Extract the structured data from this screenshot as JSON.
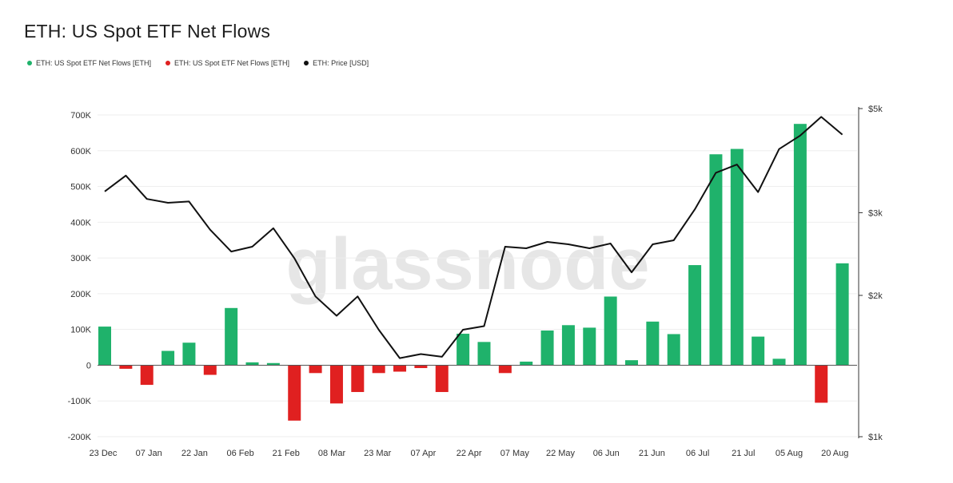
{
  "header": {
    "title": "ETH: US Spot ETF Net Flows"
  },
  "legend": {
    "items": [
      {
        "label": "ETH: US Spot ETF Net Flows [ETH]",
        "color": "#1fb26b"
      },
      {
        "label": "ETH: US Spot ETF Net Flows [ETH]",
        "color": "#e02020"
      },
      {
        "label": "ETH: Price [USD]",
        "color": "#111111"
      }
    ]
  },
  "watermark": "glassnode",
  "chart_data": {
    "type": "bar",
    "title": "ETH: US Spot ETF Net Flows",
    "x_tick_labels": [
      "23 Dec",
      "07 Jan",
      "22 Jan",
      "06 Feb",
      "21 Feb",
      "08 Mar",
      "23 Mar",
      "07 Apr",
      "22 Apr",
      "07 May",
      "22 May",
      "06 Jun",
      "21 Jun",
      "06 Jul",
      "21 Jul",
      "05 Aug",
      "20 Aug"
    ],
    "y_left_ticks": [
      "700K",
      "600K",
      "500K",
      "400K",
      "300K",
      "200K",
      "100K",
      "0",
      "-100K",
      "-200K"
    ],
    "y_left_range": [
      -200000,
      700000
    ],
    "y_right_ticks": [
      "$5k",
      "$3k",
      "$2k",
      "$1k"
    ],
    "y_right_scale": "log",
    "y_right_range": [
      1000,
      5000
    ],
    "colors": {
      "inflow": "#1fb26b",
      "outflow": "#e02020",
      "price": "#111111"
    },
    "grid": "horizontal",
    "legend_position": "top-left",
    "series": [
      {
        "name": "ETH: US Spot ETF Net Flows [ETH]",
        "type": "bar",
        "axis": "left",
        "values": [
          108000,
          -10000,
          -55000,
          40000,
          63000,
          -27000,
          160000,
          8000,
          6000,
          -155000,
          -22000,
          -107000,
          -75000,
          -22000,
          -18000,
          -8000,
          -75000,
          88000,
          65000,
          -22000,
          10000,
          97000,
          112000,
          105000,
          192000,
          14000,
          122000,
          87000,
          280000,
          590000,
          605000,
          80000,
          18000,
          675000,
          -105000,
          285000
        ]
      },
      {
        "name": "ETH: Price [USD]",
        "type": "line",
        "axis": "right",
        "values": [
          3330,
          3600,
          3210,
          3150,
          3170,
          2760,
          2480,
          2540,
          2780,
          2400,
          1990,
          1810,
          1990,
          1690,
          1470,
          1500,
          1480,
          1690,
          1720,
          2540,
          2520,
          2600,
          2570,
          2520,
          2580,
          2240,
          2570,
          2620,
          3050,
          3650,
          3800,
          3320,
          4100,
          4380,
          4800,
          4400
        ]
      }
    ]
  }
}
